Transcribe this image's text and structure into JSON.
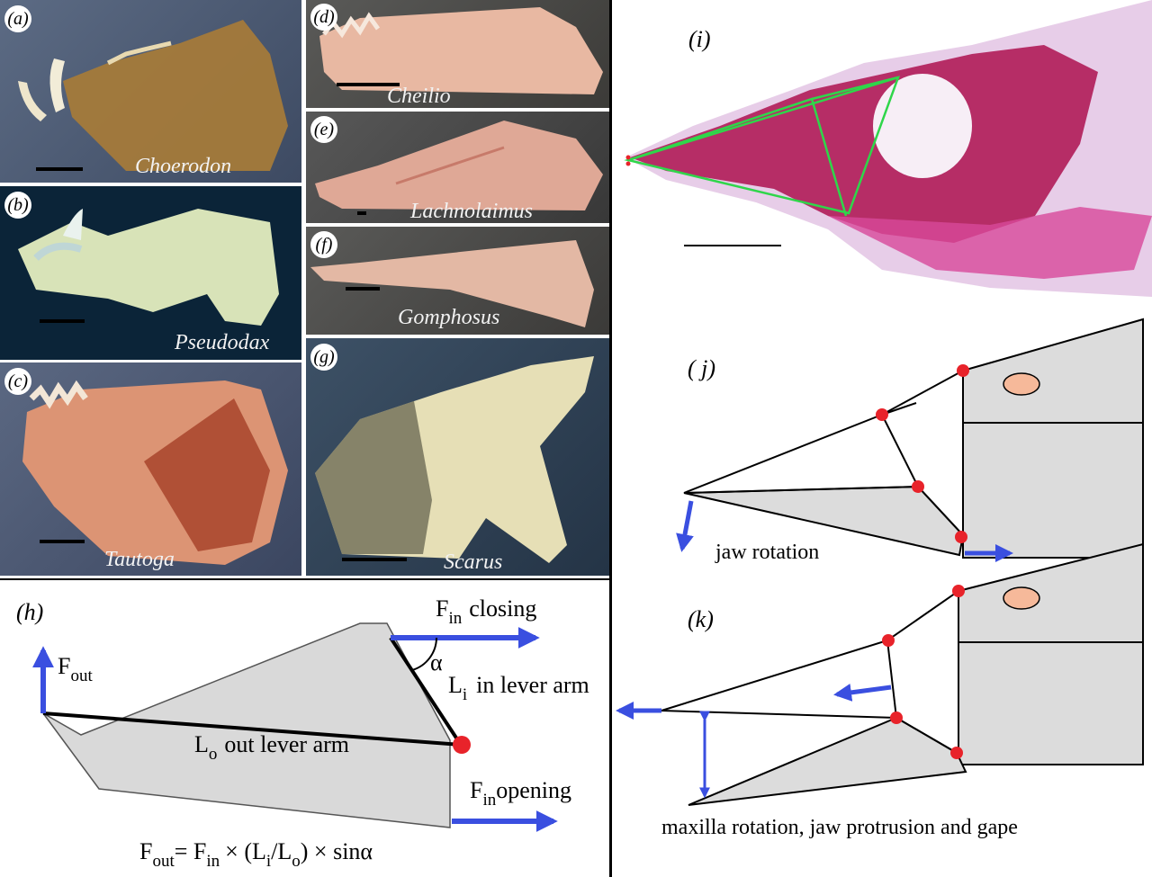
{
  "photos": {
    "a": {
      "label": "(a)",
      "genus": "Choerodon"
    },
    "b": {
      "label": "(b)",
      "genus": "Pseudodax"
    },
    "c": {
      "label": "(c)",
      "genus": "Tautoga"
    },
    "d": {
      "label": "(d)",
      "genus": "Cheilio"
    },
    "e": {
      "label": "(e)",
      "genus": "Lachnolaimus"
    },
    "f": {
      "label": "(f)",
      "genus": "Gomphosus"
    },
    "g": {
      "label": "(g)",
      "genus": "Scarus"
    }
  },
  "panel_h": {
    "label": "(h)",
    "f_out": "F",
    "f_out_sub": "out",
    "f_in_closing": "F",
    "f_in_closing_sub": "in",
    "closing_word": "closing",
    "alpha": "α",
    "li": "L",
    "li_sub": "i",
    "li_text": "in lever arm",
    "lo": "L",
    "lo_sub": "o",
    "lo_text": "out lever arm",
    "f_in_opening": "F",
    "f_in_opening_sub": "in",
    "opening_word": "opening",
    "formula": {
      "f": "F",
      "out": "out",
      "eq": "= F",
      "in": "in",
      "times": "× (L",
      "i": "i",
      "slash": "/L",
      "o": "o",
      "end": ") × sinα"
    }
  },
  "panel_i": {
    "label": "(i)"
  },
  "panel_j": {
    "label": "( j)",
    "caption": "jaw rotation"
  },
  "panel_k": {
    "label": "(k)",
    "caption": "maxilla rotation, jaw protrusion and gape"
  },
  "colors": {
    "arrow": "#3a4fe0",
    "joint": "#e8232a",
    "fill": "#dcdcdc",
    "eye": "#f6b99a",
    "link": "#2fd64a"
  }
}
